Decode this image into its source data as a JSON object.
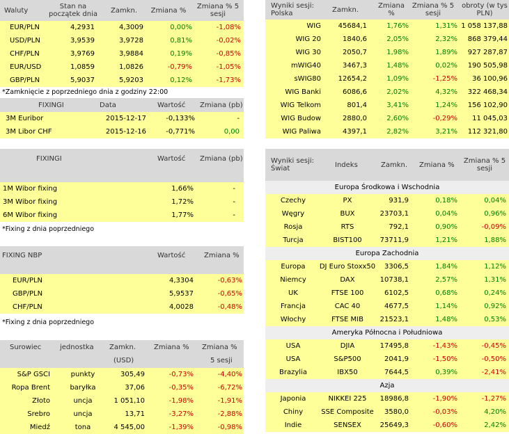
{
  "currency": {
    "headers": [
      "Waluty",
      "Stan na początek dnia",
      "Zamkn.",
      "Zmiana %",
      "Zmiana % 5 sesji"
    ],
    "rows": [
      {
        "name": "EUR/PLN",
        "open": "4,2931",
        "close": "4,3009",
        "chg": "0,00%",
        "chg5": "-1,08%"
      },
      {
        "name": "USD/PLN",
        "open": "3,9539",
        "close": "3,9728",
        "chg": "0,81%",
        "chg5": "-0,02%"
      },
      {
        "name": "CHF/PLN",
        "open": "3,9769",
        "close": "3,9884",
        "chg": "0,19%",
        "chg5": "-0,85%"
      },
      {
        "name": "EUR/USD",
        "open": "1,0859",
        "close": "1,0826",
        "chg": "-0,79%",
        "chg5": "-1,05%"
      },
      {
        "name": "GBP/PLN",
        "open": "5,9037",
        "close": "5,9203",
        "chg": "0,12%",
        "chg5": "-1,73%"
      }
    ],
    "note": "*Zamknięcie z poprzedniego dnia z godziny 22:00"
  },
  "fixing_ibor": {
    "headers": [
      "FIXINGI",
      "Data",
      "Wartość",
      "Zmiana (pb)"
    ],
    "rows": [
      {
        "name": "3M Euribor",
        "date": "2015-12-17",
        "value": "-0,133%",
        "chg": "-"
      },
      {
        "name": "3M Libor CHF",
        "date": "2015-12-16",
        "value": "-0,771%",
        "chg": "0,00"
      }
    ]
  },
  "fixing_wibor": {
    "headers": [
      "FIXINGI",
      "Wartość",
      "Zmiana (pb)"
    ],
    "rows": [
      {
        "name": "1M Wibor fixing",
        "value": "1,66%",
        "chg": "-"
      },
      {
        "name": "3M Wibor fixing",
        "value": "1,72%",
        "chg": "-"
      },
      {
        "name": "6M Wibor fixing",
        "value": "1,77%",
        "chg": "-"
      }
    ],
    "note": "*Fixing z dnia poprzedniego"
  },
  "fixing_nbp": {
    "headers": [
      "FIXING NBP",
      "Wartość",
      "Zmiana %"
    ],
    "rows": [
      {
        "name": "EUR/PLN",
        "value": "4,3304",
        "chg": "-0,63%"
      },
      {
        "name": "GBP/PLN",
        "value": "5,9537",
        "chg": "-0,65%"
      },
      {
        "name": "CHF/PLN",
        "value": "4,0028",
        "chg": "-0,48%"
      }
    ],
    "note": "*Fixing z dnia poprzedniego"
  },
  "commodities": {
    "headers": [
      "Surowiec",
      "jednostka",
      "Zamkn.",
      "Zmiana %",
      "Zmiana %"
    ],
    "subheaders": [
      "(USD)",
      "5 sesji"
    ],
    "rows": [
      {
        "name": "S&P GSCI",
        "unit": "punkty",
        "close": "305,49",
        "chg": "-0,73%",
        "chg5": "-4,40%"
      },
      {
        "name": "Ropa Brent",
        "unit": "baryłka",
        "close": "37,06",
        "chg": "-0,35%",
        "chg5": "-6,72%"
      },
      {
        "name": "Złoto",
        "unit": "uncja",
        "close": "1 051,10",
        "chg": "-1,98%",
        "chg5": "-1,91%"
      },
      {
        "name": "Srebro",
        "unit": "uncja",
        "close": "13,71",
        "chg": "-3,27%",
        "chg5": "-2,88%"
      },
      {
        "name": "Miedź",
        "unit": "tona",
        "close": "4 545,00",
        "chg": "-1,39%",
        "chg5": "-0,98%"
      }
    ]
  },
  "poland": {
    "headers": [
      "Wyniki sesji: Polska",
      "Zamkn.",
      "Zmiana %",
      "Zmiana % 5 sesji",
      "obroty (w tys PLN)"
    ],
    "rows": [
      {
        "name": "WIG",
        "close": "45684,1",
        "chg": "1,76%",
        "chg5": "1,31%",
        "turnover": "1 058 137,88"
      },
      {
        "name": "WIG 20",
        "close": "1840,6",
        "chg": "2,05%",
        "chg5": "2,32%",
        "turnover": "868 379,44"
      },
      {
        "name": "WIG 30",
        "close": "2050,7",
        "chg": "1,98%",
        "chg5": "1,89%",
        "turnover": "927 287,87"
      },
      {
        "name": "mWIG40",
        "close": "3467,3",
        "chg": "1,48%",
        "chg5": "0,02%",
        "turnover": "190 505,98"
      },
      {
        "name": "sWIG80",
        "close": "12654,2",
        "chg": "1,09%",
        "chg5": "-1,25%",
        "turnover": "36 100,96"
      },
      {
        "name": "WIG Banki",
        "close": "6086,6",
        "chg": "2,02%",
        "chg5": "4,32%",
        "turnover": "322 468,34"
      },
      {
        "name": "WIG Telkom",
        "close": "801,4",
        "chg": "3,41%",
        "chg5": "1,24%",
        "turnover": "156 102,90"
      },
      {
        "name": "WIG Budow",
        "close": "2880,0",
        "chg": "2,60%",
        "chg5": "-0,29%",
        "turnover": "11 045,03"
      },
      {
        "name": "WIG Paliwa",
        "close": "4397,1",
        "chg": "2,82%",
        "chg5": "3,21%",
        "turnover": "112 321,80"
      }
    ]
  },
  "world": {
    "headers": [
      "Wyniki sesji: Świat",
      "Indeks",
      "Zamkn.",
      "Zmiana %",
      "Zmiana % 5 sesji"
    ],
    "sections": [
      {
        "title": "Europa Środkowa i Wschodnia",
        "rows": [
          {
            "country": "Czechy",
            "index": "PX",
            "close": "931,9",
            "chg": "0,18%",
            "chg5": "0,04%"
          },
          {
            "country": "Węgry",
            "index": "BUX",
            "close": "23703,1",
            "chg": "0,04%",
            "chg5": "0,96%"
          },
          {
            "country": "Rosja",
            "index": "RTS",
            "close": "792,1",
            "chg": "0,90%",
            "chg5": "-0,09%"
          },
          {
            "country": "Turcja",
            "index": "BIST100",
            "close": "73711,9",
            "chg": "1,21%",
            "chg5": "1,88%"
          }
        ]
      },
      {
        "title": "Europa Zachodnia",
        "rows": [
          {
            "country": "Europa",
            "index": "DJ Euro Stoxx50",
            "close": "3306,5",
            "chg": "1,84%",
            "chg5": "1,12%"
          },
          {
            "country": "Niemcy",
            "index": "DAX",
            "close": "10738,1",
            "chg": "2,57%",
            "chg5": "1,31%"
          },
          {
            "country": "UK",
            "index": "FTSE 100",
            "close": "6102,5",
            "chg": "0,68%",
            "chg5": "0,24%"
          },
          {
            "country": "Francja",
            "index": "CAC 40",
            "close": "4677,5",
            "chg": "1,14%",
            "chg5": "0,92%"
          },
          {
            "country": "Włochy",
            "index": "FTSE MIB",
            "close": "21523,1",
            "chg": "1,48%",
            "chg5": "0,53%"
          }
        ]
      },
      {
        "title": "Ameryka Północna i Południowa",
        "rows": [
          {
            "country": "USA",
            "index": "DJIA",
            "close": "17495,8",
            "chg": "-1,43%",
            "chg5": "-0,45%"
          },
          {
            "country": "USA",
            "index": "S&P500",
            "close": "2041,9",
            "chg": "-1,50%",
            "chg5": "-0,50%"
          },
          {
            "country": "Brazylia",
            "index": "IBX50",
            "close": "7644,5",
            "chg": "0,39%",
            "chg5": "-2,41%"
          }
        ]
      },
      {
        "title": "Azja",
        "rows": [
          {
            "country": "Japonia",
            "index": "NIKKEI 225",
            "close": "18986,8",
            "chg": "-1,90%",
            "chg5": "-1,27%"
          },
          {
            "country": "Chiny",
            "index": "SSE Composite",
            "close": "3580,0",
            "chg": "-0,03%",
            "chg5": "4,20%"
          },
          {
            "country": "Indie",
            "index": "SENSEX",
            "close": "25649,3",
            "chg": "-0,60%",
            "chg5": "2,42%"
          }
        ]
      }
    ]
  },
  "colors": {
    "header": "#d9d9d9",
    "row": "#ffff99",
    "section": "#eeeeee",
    "positive": "#008000",
    "negative": "#cc0000"
  }
}
